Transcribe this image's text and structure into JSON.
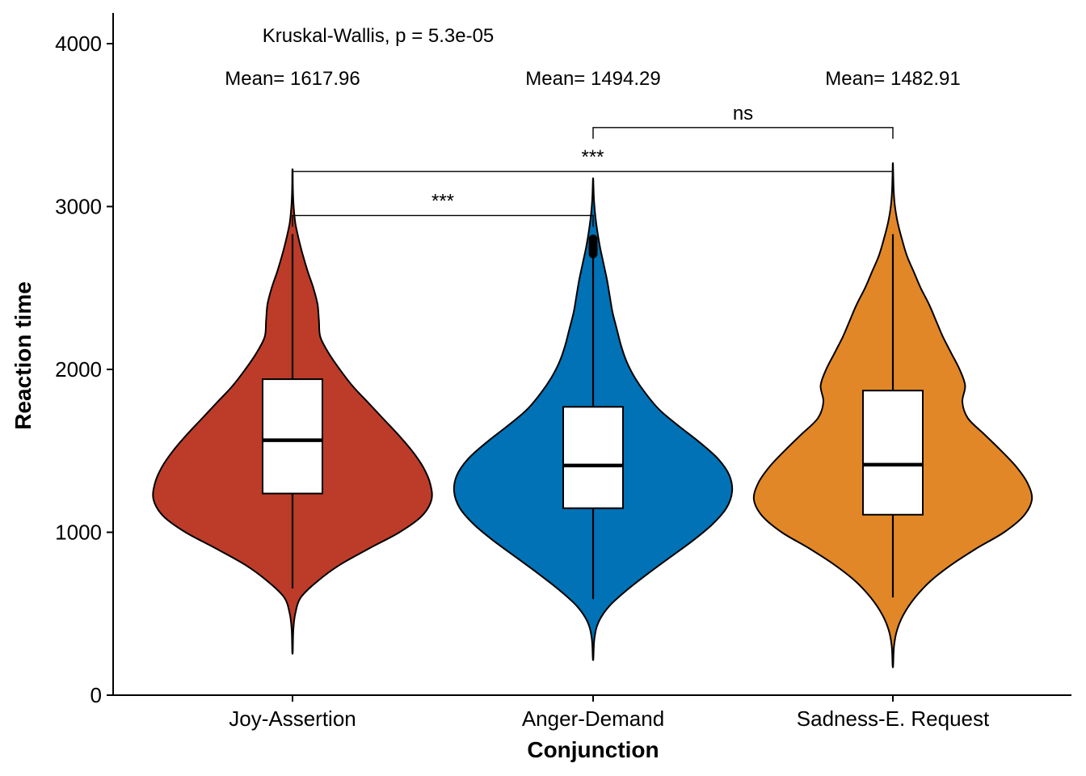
{
  "chart_data": {
    "type": "violin",
    "xlabel": "Conjunction",
    "ylabel": "Reaction time",
    "ylim": [
      0,
      4200
    ],
    "yticks": [
      0,
      1000,
      2000,
      3000,
      4000
    ],
    "grid": false,
    "legend": "none",
    "test_label": "Kruskal-Wallis, p = 5.3e-05",
    "groups": [
      {
        "name": "Joy-Assertion",
        "color": "#BC3C29",
        "mean_label": "Mean= 1617.96",
        "min": 265,
        "max": 3220,
        "q1": 1238,
        "median": 1565,
        "q3": 1940,
        "whisker_low": 655,
        "whisker_high": 2830,
        "outliers": [],
        "density": [
          [
            265,
            0.002
          ],
          [
            400,
            0.006
          ],
          [
            500,
            0.02
          ],
          [
            600,
            0.06
          ],
          [
            700,
            0.18
          ],
          [
            800,
            0.34
          ],
          [
            900,
            0.55
          ],
          [
            1000,
            0.77
          ],
          [
            1100,
            0.93
          ],
          [
            1200,
            1.0
          ],
          [
            1300,
            0.99
          ],
          [
            1400,
            0.94
          ],
          [
            1500,
            0.86
          ],
          [
            1600,
            0.76
          ],
          [
            1700,
            0.65
          ],
          [
            1800,
            0.54
          ],
          [
            1900,
            0.43
          ],
          [
            2000,
            0.34
          ],
          [
            2100,
            0.26
          ],
          [
            2200,
            0.2
          ],
          [
            2300,
            0.19
          ],
          [
            2400,
            0.18
          ],
          [
            2500,
            0.15
          ],
          [
            2600,
            0.11
          ],
          [
            2700,
            0.075
          ],
          [
            2800,
            0.045
          ],
          [
            2900,
            0.02
          ],
          [
            3000,
            0.008
          ],
          [
            3100,
            0.003
          ],
          [
            3220,
            0.001
          ]
        ]
      },
      {
        "name": "Anger-Demand",
        "color": "#0072B5",
        "mean_label": "Mean= 1494.29",
        "min": 225,
        "max": 3165,
        "q1": 1148,
        "median": 1410,
        "q3": 1770,
        "whisker_low": 590,
        "whisker_high": 2700,
        "outliers": [
          2710,
          2730,
          2745,
          2760,
          2780,
          2800
        ],
        "density": [
          [
            225,
            0.002
          ],
          [
            350,
            0.01
          ],
          [
            450,
            0.04
          ],
          [
            550,
            0.12
          ],
          [
            650,
            0.25
          ],
          [
            750,
            0.4
          ],
          [
            850,
            0.56
          ],
          [
            950,
            0.72
          ],
          [
            1050,
            0.86
          ],
          [
            1150,
            0.96
          ],
          [
            1250,
            1.0
          ],
          [
            1350,
            0.98
          ],
          [
            1450,
            0.9
          ],
          [
            1550,
            0.77
          ],
          [
            1650,
            0.62
          ],
          [
            1750,
            0.48
          ],
          [
            1850,
            0.38
          ],
          [
            1950,
            0.3
          ],
          [
            2050,
            0.24
          ],
          [
            2150,
            0.2
          ],
          [
            2250,
            0.17
          ],
          [
            2350,
            0.14
          ],
          [
            2450,
            0.12
          ],
          [
            2550,
            0.1
          ],
          [
            2650,
            0.075
          ],
          [
            2750,
            0.05
          ],
          [
            2850,
            0.03
          ],
          [
            2950,
            0.015
          ],
          [
            3050,
            0.006
          ],
          [
            3165,
            0.001
          ]
        ]
      },
      {
        "name": "Sadness-E. Request",
        "color": "#E18727",
        "mean_label": "Mean= 1482.91",
        "min": 180,
        "max": 3255,
        "q1": 1108,
        "median": 1415,
        "q3": 1870,
        "whisker_low": 600,
        "whisker_high": 2830,
        "outliers": [],
        "density": [
          [
            180,
            0.002
          ],
          [
            300,
            0.008
          ],
          [
            400,
            0.03
          ],
          [
            500,
            0.08
          ],
          [
            600,
            0.16
          ],
          [
            700,
            0.27
          ],
          [
            800,
            0.42
          ],
          [
            900,
            0.6
          ],
          [
            1000,
            0.8
          ],
          [
            1100,
            0.94
          ],
          [
            1200,
            1.0
          ],
          [
            1300,
            0.97
          ],
          [
            1400,
            0.89
          ],
          [
            1500,
            0.78
          ],
          [
            1600,
            0.66
          ],
          [
            1700,
            0.54
          ],
          [
            1800,
            0.5
          ],
          [
            1900,
            0.52
          ],
          [
            2000,
            0.48
          ],
          [
            2100,
            0.42
          ],
          [
            2200,
            0.36
          ],
          [
            2300,
            0.31
          ],
          [
            2400,
            0.26
          ],
          [
            2500,
            0.2
          ],
          [
            2600,
            0.15
          ],
          [
            2700,
            0.1
          ],
          [
            2800,
            0.065
          ],
          [
            2900,
            0.035
          ],
          [
            3000,
            0.015
          ],
          [
            3100,
            0.006
          ],
          [
            3255,
            0.001
          ]
        ]
      }
    ],
    "comparisons": [
      {
        "from": "Joy-Assertion",
        "to": "Anger-Demand",
        "label": "***",
        "y": 2945
      },
      {
        "from": "Joy-Assertion",
        "to": "Sadness-E. Request",
        "label": "***",
        "y": 3215
      },
      {
        "from": "Anger-Demand",
        "to": "Sadness-E. Request",
        "label": "ns",
        "y": 3485
      }
    ]
  }
}
